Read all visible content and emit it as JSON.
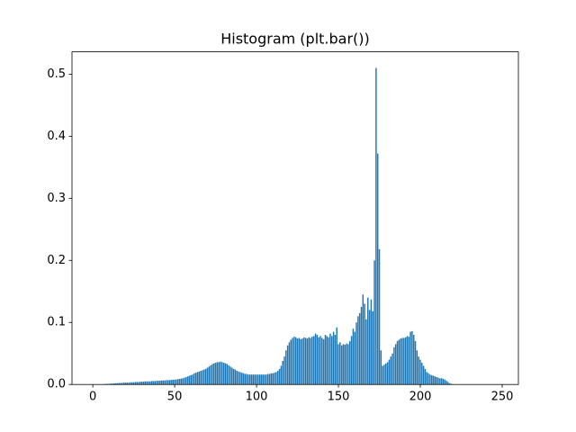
{
  "chart_data": {
    "type": "bar",
    "title": "Histogram (plt.bar())",
    "color": "#1f77b4",
    "x": [
      0,
      1,
      2,
      3,
      4,
      5,
      6,
      7,
      8,
      9,
      10,
      11,
      12,
      13,
      14,
      15,
      16,
      17,
      18,
      19,
      20,
      21,
      22,
      23,
      24,
      25,
      26,
      27,
      28,
      29,
      30,
      31,
      32,
      33,
      34,
      35,
      36,
      37,
      38,
      39,
      40,
      41,
      42,
      43,
      44,
      45,
      46,
      47,
      48,
      49,
      50,
      51,
      52,
      53,
      54,
      55,
      56,
      57,
      58,
      59,
      60,
      61,
      62,
      63,
      64,
      65,
      66,
      67,
      68,
      69,
      70,
      71,
      72,
      73,
      74,
      75,
      76,
      77,
      78,
      79,
      80,
      81,
      82,
      83,
      84,
      85,
      86,
      87,
      88,
      89,
      90,
      91,
      92,
      93,
      94,
      95,
      96,
      97,
      98,
      99,
      100,
      101,
      102,
      103,
      104,
      105,
      106,
      107,
      108,
      109,
      110,
      111,
      112,
      113,
      114,
      115,
      116,
      117,
      118,
      119,
      120,
      121,
      122,
      123,
      124,
      125,
      126,
      127,
      128,
      129,
      130,
      131,
      132,
      133,
      134,
      135,
      136,
      137,
      138,
      139,
      140,
      141,
      142,
      143,
      144,
      145,
      146,
      147,
      148,
      149,
      150,
      151,
      152,
      153,
      154,
      155,
      156,
      157,
      158,
      159,
      160,
      161,
      162,
      163,
      164,
      165,
      166,
      167,
      168,
      169,
      170,
      171,
      172,
      173,
      174,
      175,
      176,
      177,
      178,
      179,
      180,
      181,
      182,
      183,
      184,
      185,
      186,
      187,
      188,
      189,
      190,
      191,
      192,
      193,
      194,
      195,
      196,
      197,
      198,
      199,
      200,
      201,
      202,
      203,
      204,
      205,
      206,
      207,
      208,
      209,
      210,
      211,
      212,
      213,
      214,
      215,
      216,
      217,
      218,
      219,
      220,
      221,
      222,
      223,
      224,
      225,
      226,
      227,
      228,
      229,
      230,
      231,
      232,
      233,
      234,
      235,
      236,
      237,
      238,
      239,
      240,
      241,
      242,
      243,
      244,
      245,
      246,
      247,
      248,
      249,
      250,
      251,
      252,
      253,
      254,
      255
    ],
    "values": [
      0,
      0,
      0,
      0,
      0,
      0,
      0.0005,
      0.0005,
      0.001,
      0.001,
      0.001,
      0.0015,
      0.0015,
      0.002,
      0.002,
      0.002,
      0.0025,
      0.0025,
      0.0025,
      0.003,
      0.003,
      0.003,
      0.003,
      0.0035,
      0.0035,
      0.0035,
      0.004,
      0.004,
      0.004,
      0.0045,
      0.0045,
      0.0045,
      0.005,
      0.005,
      0.005,
      0.005,
      0.0055,
      0.0055,
      0.0055,
      0.006,
      0.006,
      0.006,
      0.0065,
      0.0065,
      0.0065,
      0.007,
      0.007,
      0.007,
      0.0075,
      0.0075,
      0.008,
      0.008,
      0.0085,
      0.009,
      0.0095,
      0.01,
      0.011,
      0.012,
      0.013,
      0.014,
      0.015,
      0.016,
      0.018,
      0.019,
      0.02,
      0.021,
      0.022,
      0.023,
      0.024,
      0.025,
      0.027,
      0.029,
      0.031,
      0.033,
      0.034,
      0.035,
      0.036,
      0.036,
      0.037,
      0.036,
      0.035,
      0.034,
      0.033,
      0.031,
      0.029,
      0.027,
      0.025,
      0.024,
      0.022,
      0.021,
      0.02,
      0.019,
      0.018,
      0.017,
      0.017,
      0.016,
      0.016,
      0.016,
      0.016,
      0.016,
      0.016,
      0.016,
      0.016,
      0.016,
      0.016,
      0.016,
      0.016,
      0.017,
      0.017,
      0.018,
      0.018,
      0.019,
      0.02,
      0.022,
      0.025,
      0.03,
      0.038,
      0.045,
      0.055,
      0.063,
      0.068,
      0.072,
      0.075,
      0.077,
      0.076,
      0.074,
      0.075,
      0.073,
      0.074,
      0.076,
      0.075,
      0.074,
      0.076,
      0.075,
      0.077,
      0.078,
      0.082,
      0.08,
      0.076,
      0.078,
      0.075,
      0.073,
      0.08,
      0.078,
      0.076,
      0.082,
      0.078,
      0.085,
      0.08,
      0.092,
      0.065,
      0.068,
      0.063,
      0.065,
      0.064,
      0.066,
      0.065,
      0.07,
      0.078,
      0.09,
      0.085,
      0.1,
      0.11,
      0.115,
      0.125,
      0.145,
      0.13,
      0.105,
      0.14,
      0.12,
      0.137,
      0.118,
      0.2,
      0.51,
      0.372,
      0.218,
      0.055,
      0.03,
      0.032,
      0.034,
      0.036,
      0.04,
      0.045,
      0.05,
      0.06,
      0.065,
      0.07,
      0.072,
      0.074,
      0.075,
      0.075,
      0.076,
      0.078,
      0.077,
      0.085,
      0.086,
      0.08,
      0.07,
      0.055,
      0.045,
      0.04,
      0.035,
      0.03,
      0.025,
      0.02,
      0.018,
      0.016,
      0.015,
      0.014,
      0.013,
      0.012,
      0.011,
      0.01,
      0.01,
      0.009,
      0.008,
      0.006,
      0.004,
      0.002,
      0.001,
      0,
      0,
      0,
      0,
      0,
      0,
      0,
      0,
      0,
      0,
      0,
      0,
      0,
      0,
      0,
      0,
      0,
      0,
      0,
      0,
      0,
      0,
      0,
      0,
      0,
      0,
      0,
      0,
      0,
      0,
      0,
      0,
      0,
      0,
      0,
      0
    ],
    "xlim": [
      -12.7,
      259.9
    ],
    "ylim": [
      0,
      0.536
    ],
    "xticks": [
      0,
      50,
      100,
      150,
      200,
      250
    ],
    "yticks": [
      {
        "value": 0,
        "label": "0.0"
      },
      0.1,
      0.2,
      0.3,
      0.4,
      0.5
    ]
  }
}
